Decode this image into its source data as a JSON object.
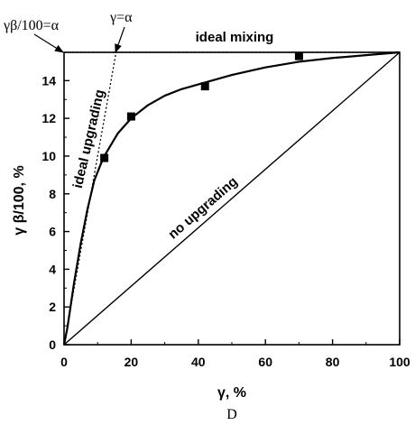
{
  "chart_data": {
    "type": "line",
    "xlabel": "γ, %",
    "ylabel": "γ β/100, %",
    "xlim": [
      0,
      100
    ],
    "ylim": [
      0,
      15.5
    ],
    "xticks": [
      "0",
      "20",
      "40",
      "60",
      "80",
      "100"
    ],
    "yticks": [
      "0",
      "2",
      "4",
      "6",
      "8",
      "10",
      "12",
      "14"
    ],
    "caption": "D",
    "series": [
      {
        "name": "ideal mixing",
        "style": "dotted",
        "x": [
          0,
          100
        ],
        "y": [
          15.5,
          15.5
        ]
      },
      {
        "name": "ideal upgrading",
        "style": "dotted",
        "x": [
          0,
          15.5
        ],
        "y": [
          0,
          15.5
        ]
      },
      {
        "name": "no upgrading",
        "style": "solid",
        "x": [
          0,
          100
        ],
        "y": [
          0,
          15.5
        ]
      },
      {
        "name": "",
        "style": "solid",
        "x": [
          0,
          1,
          2,
          3,
          5,
          7,
          9,
          11,
          12,
          14,
          16,
          20,
          25,
          30,
          35,
          42,
          50,
          60,
          70,
          80,
          90,
          100
        ],
        "y": [
          0,
          0.9,
          2.1,
          3.3,
          5.4,
          7.2,
          8.7,
          9.6,
          10.0,
          10.6,
          11.2,
          12.0,
          12.7,
          13.2,
          13.55,
          13.9,
          14.3,
          14.7,
          15.0,
          15.2,
          15.35,
          15.5
        ]
      },
      {
        "name": "",
        "style": "markers",
        "x": [
          12,
          20,
          42,
          70
        ],
        "y": [
          9.9,
          12.1,
          13.7,
          15.3
        ]
      }
    ],
    "annotations": [
      {
        "text": "ideal mixing"
      },
      {
        "text": "ideal upgrading"
      },
      {
        "text": "no upgrading"
      },
      {
        "text": "γβ/100=α"
      },
      {
        "text": "γ=α"
      }
    ]
  }
}
